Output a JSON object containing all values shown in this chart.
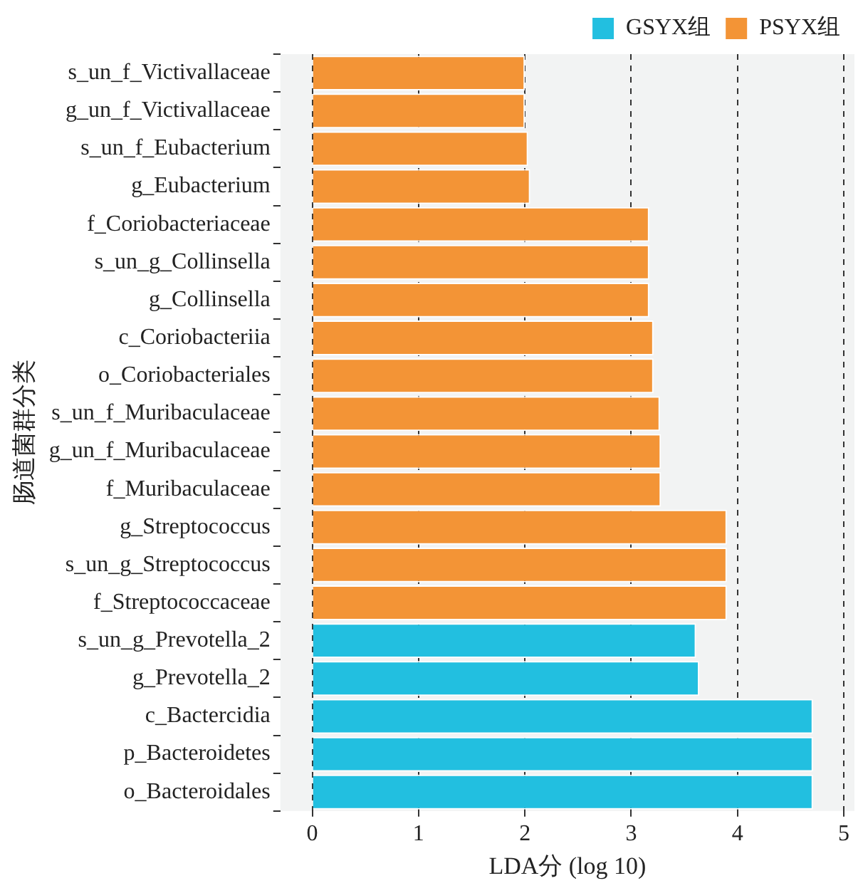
{
  "chart_data": {
    "type": "bar",
    "orientation": "horizontal",
    "xlabel": "LDA分 (log 10)",
    "ylabel": "肠道菌群分类",
    "categories": [
      "s_un_f_Victivallaceae",
      "g_un_f_Victivallaceae",
      "s_un_f_Eubacterium",
      "g_Eubacterium",
      "f_Coriobacteriaceae",
      "s_un_g_Collinsella",
      "g_Collinsella",
      "c_Coriobacteriia",
      "o_Coriobacteriales",
      "s_un_f_Muribaculaceae",
      "g_un_f_Muribaculaceae",
      "f_Muribaculaceae",
      "g_Streptococcus",
      "s_un_g_Streptococcus",
      "f_Streptococcaceae",
      "s_un_g_Prevotella_2",
      "g_Prevotella_2",
      "c_Bactercidia",
      "p_Bacteroidetes",
      "o_Bacteroidales"
    ],
    "series": [
      {
        "name": "GSYX组",
        "color": "#22bfe0",
        "values": [
          null,
          null,
          null,
          null,
          null,
          null,
          null,
          null,
          null,
          null,
          null,
          null,
          null,
          null,
          null,
          3.61,
          3.64,
          4.71,
          4.71,
          4.71
        ]
      },
      {
        "name": "PSYX组",
        "color": "#f39436",
        "values": [
          2.0,
          2.0,
          2.03,
          2.05,
          3.17,
          3.17,
          3.17,
          3.21,
          3.21,
          3.27,
          3.28,
          3.28,
          3.9,
          3.9,
          3.9,
          null,
          null,
          null,
          null,
          null
        ]
      }
    ],
    "xlim": [
      -0.3,
      5.1
    ],
    "xticks": [
      0,
      1,
      2,
      3,
      4,
      5
    ],
    "grid": "x",
    "line_style": "dashed",
    "legend": "top right"
  }
}
